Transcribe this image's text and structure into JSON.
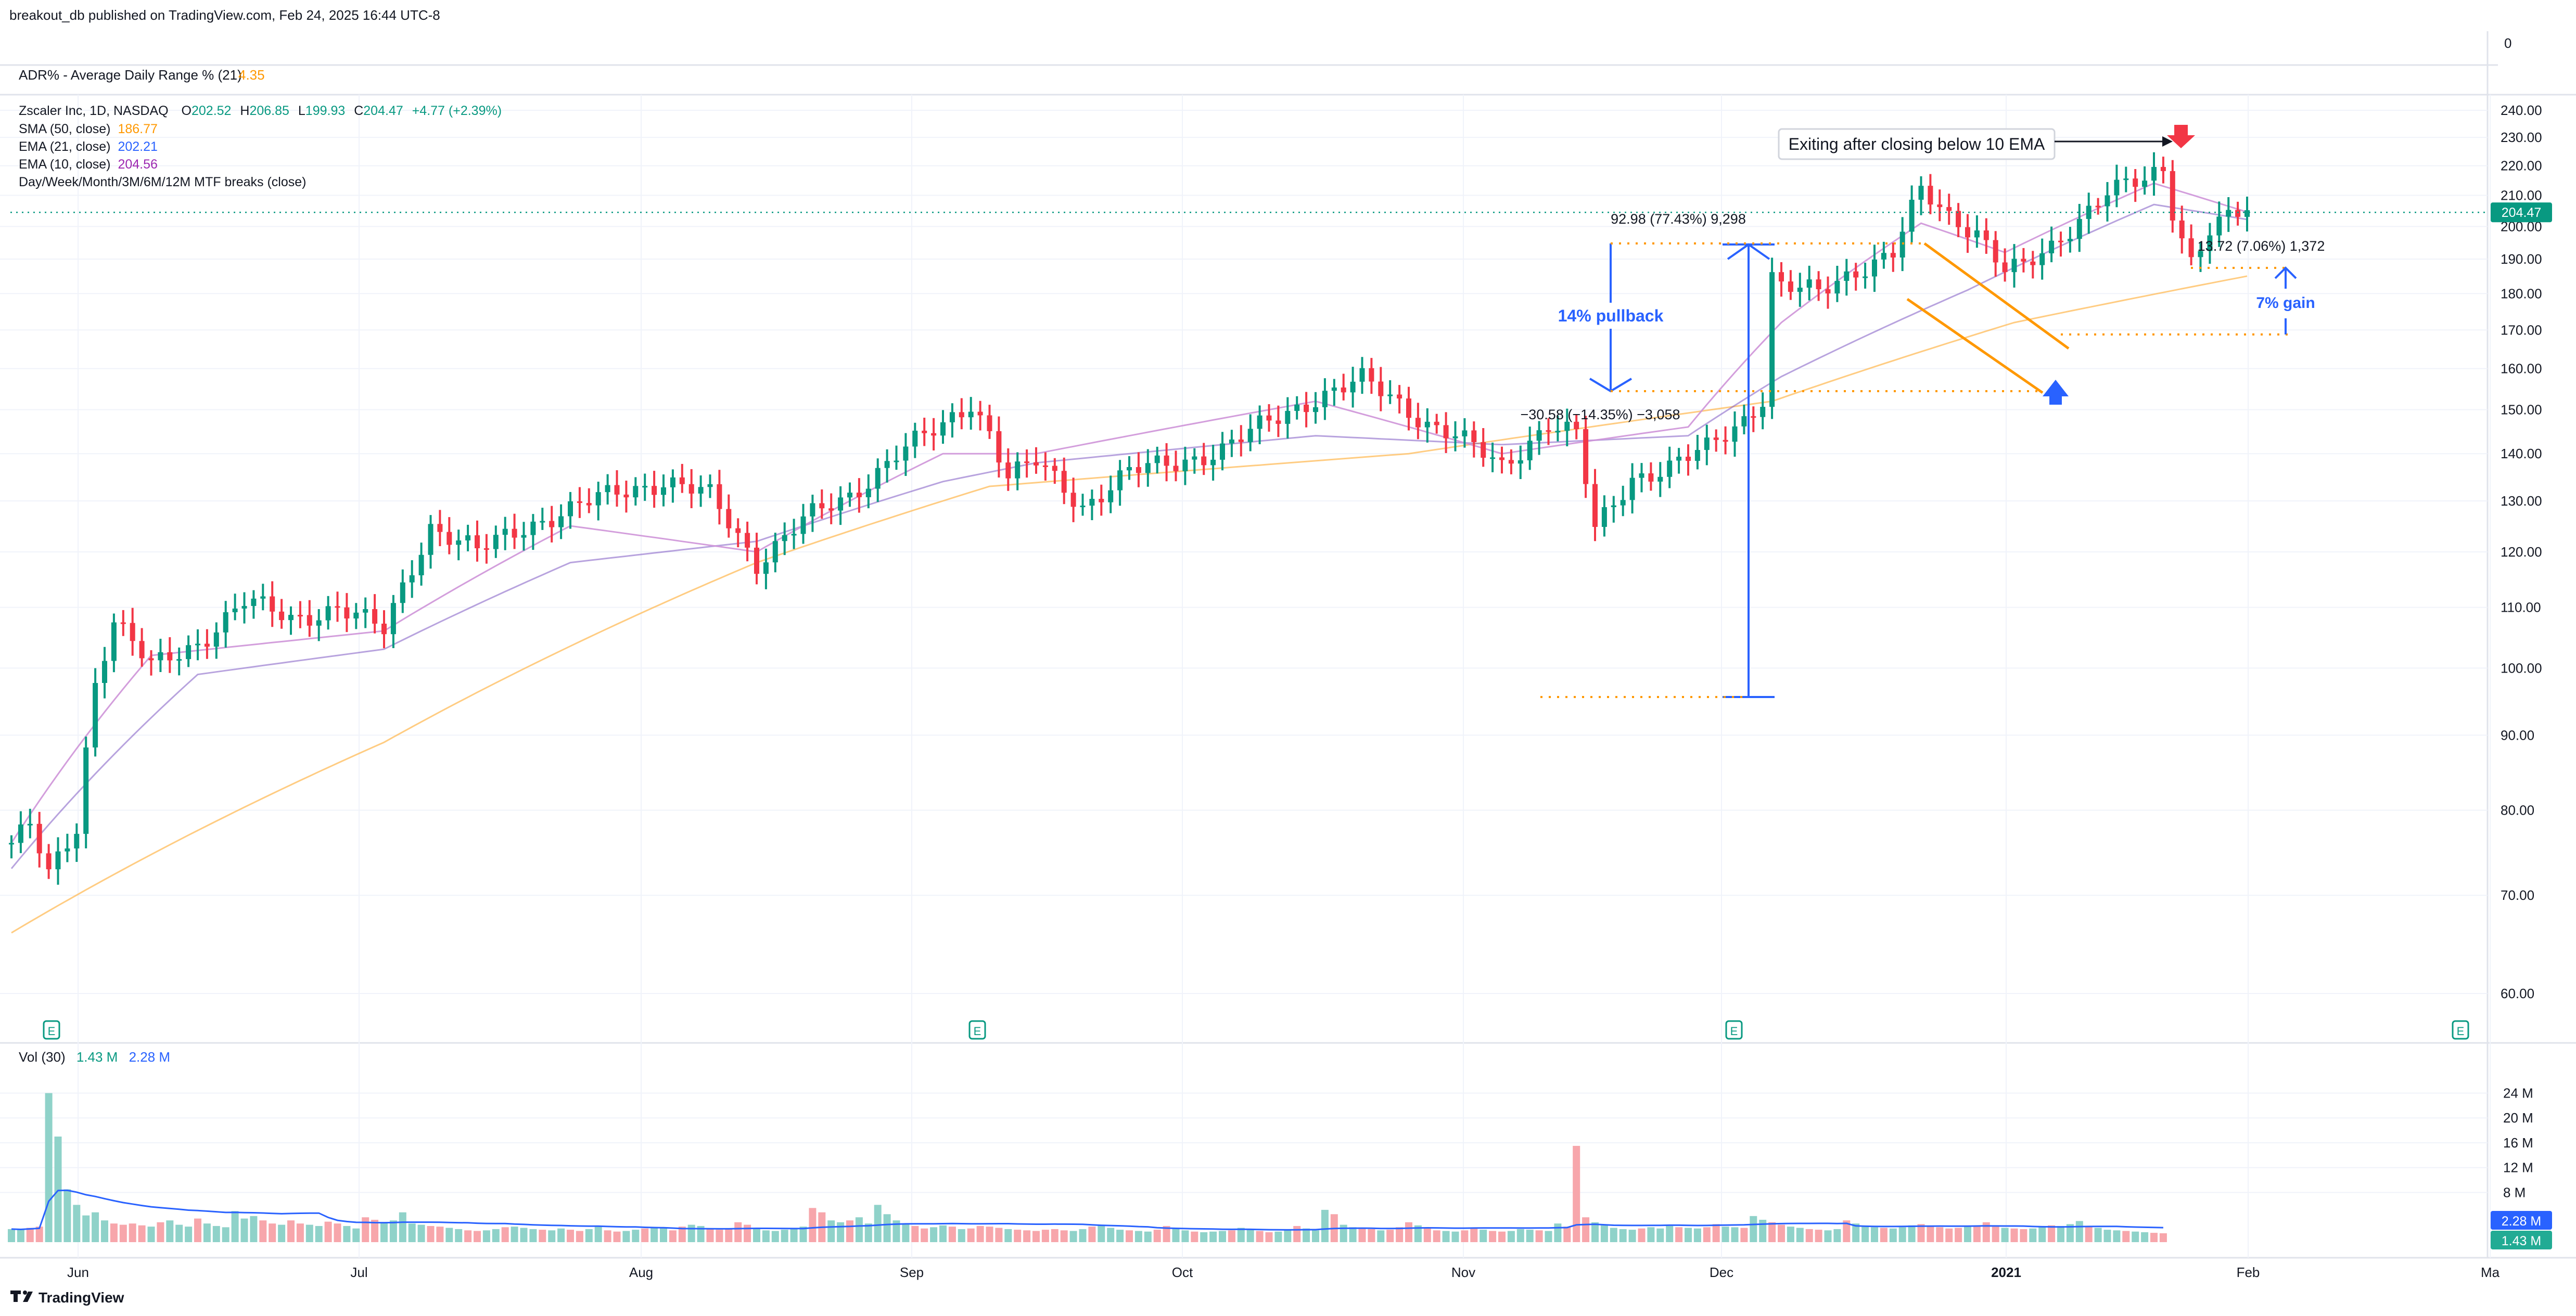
{
  "header": {
    "published": "breakout_db published on TradingView.com, Feb 24, 2025 16:44 UTC-8"
  },
  "adr_pane": {
    "label": "ADR% - Average Daily Range % (21)",
    "value": "4.35",
    "axis_tick": "0"
  },
  "legend": {
    "symbol_line": "Zscaler Inc, 1D, NASDAQ",
    "open_label": "O",
    "open": "202.52",
    "high_label": "H",
    "high": "206.85",
    "low_label": "L",
    "low": "199.93",
    "close_label": "C",
    "close": "204.47",
    "change": "+4.77 (+2.39%)",
    "sma50_label": "SMA (50, close)",
    "sma50_value": "186.77",
    "ema21_label": "EMA (21, close)",
    "ema21_value": "202.21",
    "ema10_label": "EMA (10, close)",
    "ema10_value": "204.56",
    "mtf_label": "Day/Week/Month/3M/6M/12M MTF breaks (close)"
  },
  "annotations": {
    "exit_note": "Exiting after closing below 10 EMA",
    "measure_top": "92.98 (77.43%) 9,298",
    "pullback_label": "14% pullback",
    "pullback_measure": "−30.58 (−14.35%) −3,058",
    "gain_measure": "13.72 (7.06%) 1,372",
    "gain_label": "7% gain",
    "earnings_marker": "E"
  },
  "price_axis": {
    "ticks": [
      "240.00",
      "230.00",
      "220.00",
      "210.00",
      "200.00",
      "190.00",
      "180.00",
      "170.00",
      "160.00",
      "150.00",
      "140.00",
      "130.00",
      "120.00",
      "110.00",
      "100.00",
      "90.00",
      "80.00",
      "70.00",
      "60.00"
    ],
    "last_price": "204.47"
  },
  "volume_pane": {
    "label": "Vol (30)",
    "value1": "1.43 M",
    "value2": "2.28 M",
    "ticks": [
      "24 M",
      "20 M",
      "16 M",
      "12 M",
      "8 M"
    ],
    "badge_ma": "2.28 M",
    "badge_vol": "1.43 M"
  },
  "time_axis": {
    "labels": [
      "Jun",
      "Jul",
      "Aug",
      "Sep",
      "Oct",
      "Nov",
      "Dec",
      "2021",
      "Feb",
      "Ma"
    ]
  },
  "footer": {
    "brand": "TradingView"
  },
  "colors": {
    "up": "#089981",
    "down": "#f23645",
    "vol_up": "#8fd2c9",
    "vol_down": "#f7a6ab",
    "sma50": "#ffb74d",
    "ema21": "#7e57c2",
    "ema10": "#ce93d8",
    "annotation_blue": "#2962ff",
    "channel": "#ff9800",
    "grid": "#f0f3fa"
  },
  "chart_data": {
    "type": "candlestick",
    "title": "Zscaler Inc, 1D, NASDAQ",
    "ylim": [
      55,
      245
    ],
    "yscale": "log",
    "x_labels": [
      "Jun",
      "Jul",
      "Aug",
      "Sep",
      "Oct",
      "Nov",
      "Dec",
      "2021",
      "Feb",
      "Ma"
    ],
    "price_anchors": [
      [
        0,
        76
      ],
      [
        2,
        78
      ],
      [
        4,
        72
      ],
      [
        7,
        78
      ],
      [
        9,
        98
      ],
      [
        11,
        108
      ],
      [
        15,
        100
      ],
      [
        20,
        104
      ],
      [
        25,
        111
      ],
      [
        30,
        108
      ],
      [
        35,
        110
      ],
      [
        40,
        106
      ],
      [
        45,
        125
      ],
      [
        50,
        120
      ],
      [
        55,
        125
      ],
      [
        60,
        128
      ],
      [
        65,
        132
      ],
      [
        70,
        134
      ],
      [
        75,
        131
      ],
      [
        80,
        118
      ],
      [
        85,
        126
      ],
      [
        90,
        131
      ],
      [
        95,
        140
      ],
      [
        100,
        146
      ],
      [
        103,
        152
      ],
      [
        105,
        145
      ],
      [
        107,
        135
      ],
      [
        110,
        138
      ],
      [
        115,
        129
      ],
      [
        120,
        136
      ],
      [
        125,
        138
      ],
      [
        130,
        141
      ],
      [
        135,
        147
      ],
      [
        140,
        153
      ],
      [
        145,
        157
      ],
      [
        148,
        153
      ],
      [
        152,
        147
      ],
      [
        155,
        144
      ],
      [
        160,
        137
      ],
      [
        165,
        147
      ],
      [
        168,
        144
      ],
      [
        170,
        124
      ],
      [
        174,
        135
      ],
      [
        178,
        137
      ],
      [
        182,
        141
      ],
      [
        186,
        148
      ],
      [
        188,
        153
      ],
      [
        189,
        185
      ],
      [
        190,
        182
      ],
      [
        194,
        180
      ],
      [
        198,
        187
      ],
      [
        202,
        192
      ],
      [
        205,
        211
      ],
      [
        208,
        203
      ],
      [
        211,
        199
      ],
      [
        214,
        187
      ],
      [
        216,
        187
      ],
      [
        219,
        193
      ],
      [
        222,
        203
      ],
      [
        225,
        212
      ],
      [
        229,
        214
      ],
      [
        231,
        218
      ],
      [
        232,
        205
      ],
      [
        233,
        197
      ],
      [
        234,
        190
      ],
      [
        236,
        200
      ],
      [
        238,
        203
      ],
      [
        240,
        204.5
      ]
    ],
    "sma50_anchors": [
      [
        0,
        66
      ],
      [
        40,
        89
      ],
      [
        80,
        118
      ],
      [
        105,
        133
      ],
      [
        150,
        140
      ],
      [
        189,
        152
      ],
      [
        215,
        172
      ],
      [
        240,
        185
      ]
    ],
    "ema21_anchors": [
      [
        0,
        73
      ],
      [
        20,
        99
      ],
      [
        40,
        103
      ],
      [
        60,
        118
      ],
      [
        80,
        122
      ],
      [
        100,
        134
      ],
      [
        110,
        138
      ],
      [
        140,
        144
      ],
      [
        160,
        142
      ],
      [
        180,
        144
      ],
      [
        190,
        158
      ],
      [
        210,
        181
      ],
      [
        230,
        207
      ],
      [
        240,
        202.21
      ]
    ],
    "ema10_anchors": [
      [
        0,
        76
      ],
      [
        15,
        102
      ],
      [
        40,
        106
      ],
      [
        60,
        125
      ],
      [
        80,
        120
      ],
      [
        100,
        140
      ],
      [
        110,
        140
      ],
      [
        140,
        152
      ],
      [
        160,
        140
      ],
      [
        180,
        146
      ],
      [
        190,
        172
      ],
      [
        205,
        201
      ],
      [
        214,
        192
      ],
      [
        230,
        214
      ],
      [
        240,
        204.56
      ]
    ],
    "volume_m": [
      2.1,
      2.0,
      2.3,
      2.5,
      24.0,
      17.0,
      8.5,
      6.0,
      4.3,
      4.8,
      3.5,
      3.0,
      2.8,
      3.0,
      2.7,
      2.5,
      3.2,
      3.5,
      2.8,
      2.5,
      3.8,
      3.0,
      2.6,
      2.4,
      5.0,
      3.8,
      4.2,
      3.5,
      3.0,
      2.8,
      3.5,
      3.0,
      2.8,
      2.6,
      3.3,
      3.0,
      2.6,
      2.2,
      4.0,
      3.6,
      3.2,
      3.5,
      4.8,
      3.0,
      2.8,
      2.6,
      2.5,
      2.3,
      2.1,
      1.9,
      1.8,
      1.9,
      2.1,
      2.4,
      2.5,
      2.3,
      2.1,
      2.0,
      1.9,
      2.2,
      2.0,
      1.8,
      2.1,
      2.6,
      1.9,
      1.7,
      1.8,
      2.0,
      2.2,
      2.4,
      2.3,
      1.9,
      2.5,
      2.8,
      2.6,
      2.2,
      2.0,
      2.2,
      3.2,
      2.8,
      2.2,
      1.9,
      1.8,
      2.0,
      2.1,
      2.5,
      5.5,
      4.8,
      3.5,
      3.2,
      3.5,
      4.0,
      3.0,
      6.0,
      4.5,
      3.5,
      3.0,
      2.6,
      2.2,
      2.4,
      2.7,
      2.5,
      2.1,
      2.2,
      2.6,
      2.5,
      2.3,
      2.1,
      2.0,
      1.9,
      1.8,
      2.0,
      2.1,
      1.9,
      1.8,
      2.1,
      2.5,
      2.8,
      2.3,
      2.0,
      1.9,
      1.8,
      1.7,
      2.0,
      2.6,
      2.2,
      1.9,
      1.7,
      1.6,
      1.7,
      1.8,
      1.9,
      2.3,
      2.0,
      1.8,
      1.6,
      1.7,
      1.9,
      2.6,
      2.2,
      1.9,
      5.2,
      4.5,
      2.8,
      2.4,
      2.2,
      2.1,
      1.9,
      2.0,
      2.4,
      3.2,
      2.7,
      2.2,
      1.9,
      1.8,
      1.7,
      1.9,
      2.2,
      2.0,
      1.8,
      1.7,
      1.8,
      2.1,
      2.0,
      1.9,
      1.8,
      3.0,
      2.5,
      15.5,
      4.0,
      3.2,
      2.7,
      2.3,
      2.1,
      2.0,
      2.2,
      2.4,
      2.2,
      2.6,
      2.4,
      2.3,
      2.2,
      2.4,
      2.9,
      2.5,
      2.4,
      2.3,
      4.2,
      3.6,
      3.2,
      2.8,
      2.5,
      2.3,
      2.1,
      2.0,
      1.9,
      2.1,
      3.5,
      3.0,
      2.6,
      2.4,
      2.3,
      2.2,
      2.4,
      2.7,
      2.9,
      2.6,
      2.4,
      2.2,
      2.3,
      2.5,
      2.6,
      3.2,
      2.5,
      2.3,
      2.2,
      2.1,
      2.2,
      2.4,
      2.7,
      2.6,
      2.9,
      3.4,
      2.6,
      2.3,
      2.0,
      1.9,
      1.8,
      1.7,
      1.6,
      1.5,
      1.43
    ],
    "volume_ma_m": 2.28
  }
}
